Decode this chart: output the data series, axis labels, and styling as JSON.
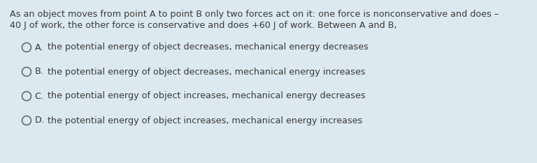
{
  "background_color": "#dce9f0",
  "question_line1": "As an object moves from point A to point B only two forces act on it: one force is nonconservative and does –",
  "question_line2": "40 J of work, the other force is conservative and does +60 J of work. Between A and B,",
  "options": [
    {
      "label": "A.",
      "text": "the potential energy of object decreases, mechanical energy decreases"
    },
    {
      "label": "B.",
      "text": "the potential energy of object decreases, mechanical energy increases"
    },
    {
      "label": "C.",
      "text": "the potential energy of object increases, mechanical energy decreases"
    },
    {
      "label": "D.",
      "text": "the potential energy of object increases, mechanical energy increases"
    }
  ],
  "text_color": "#3a3a3a",
  "circle_color": "#606060",
  "font_size_question": 9.2,
  "font_size_options": 9.2,
  "fig_width": 7.68,
  "fig_height": 2.34,
  "dpi": 100
}
